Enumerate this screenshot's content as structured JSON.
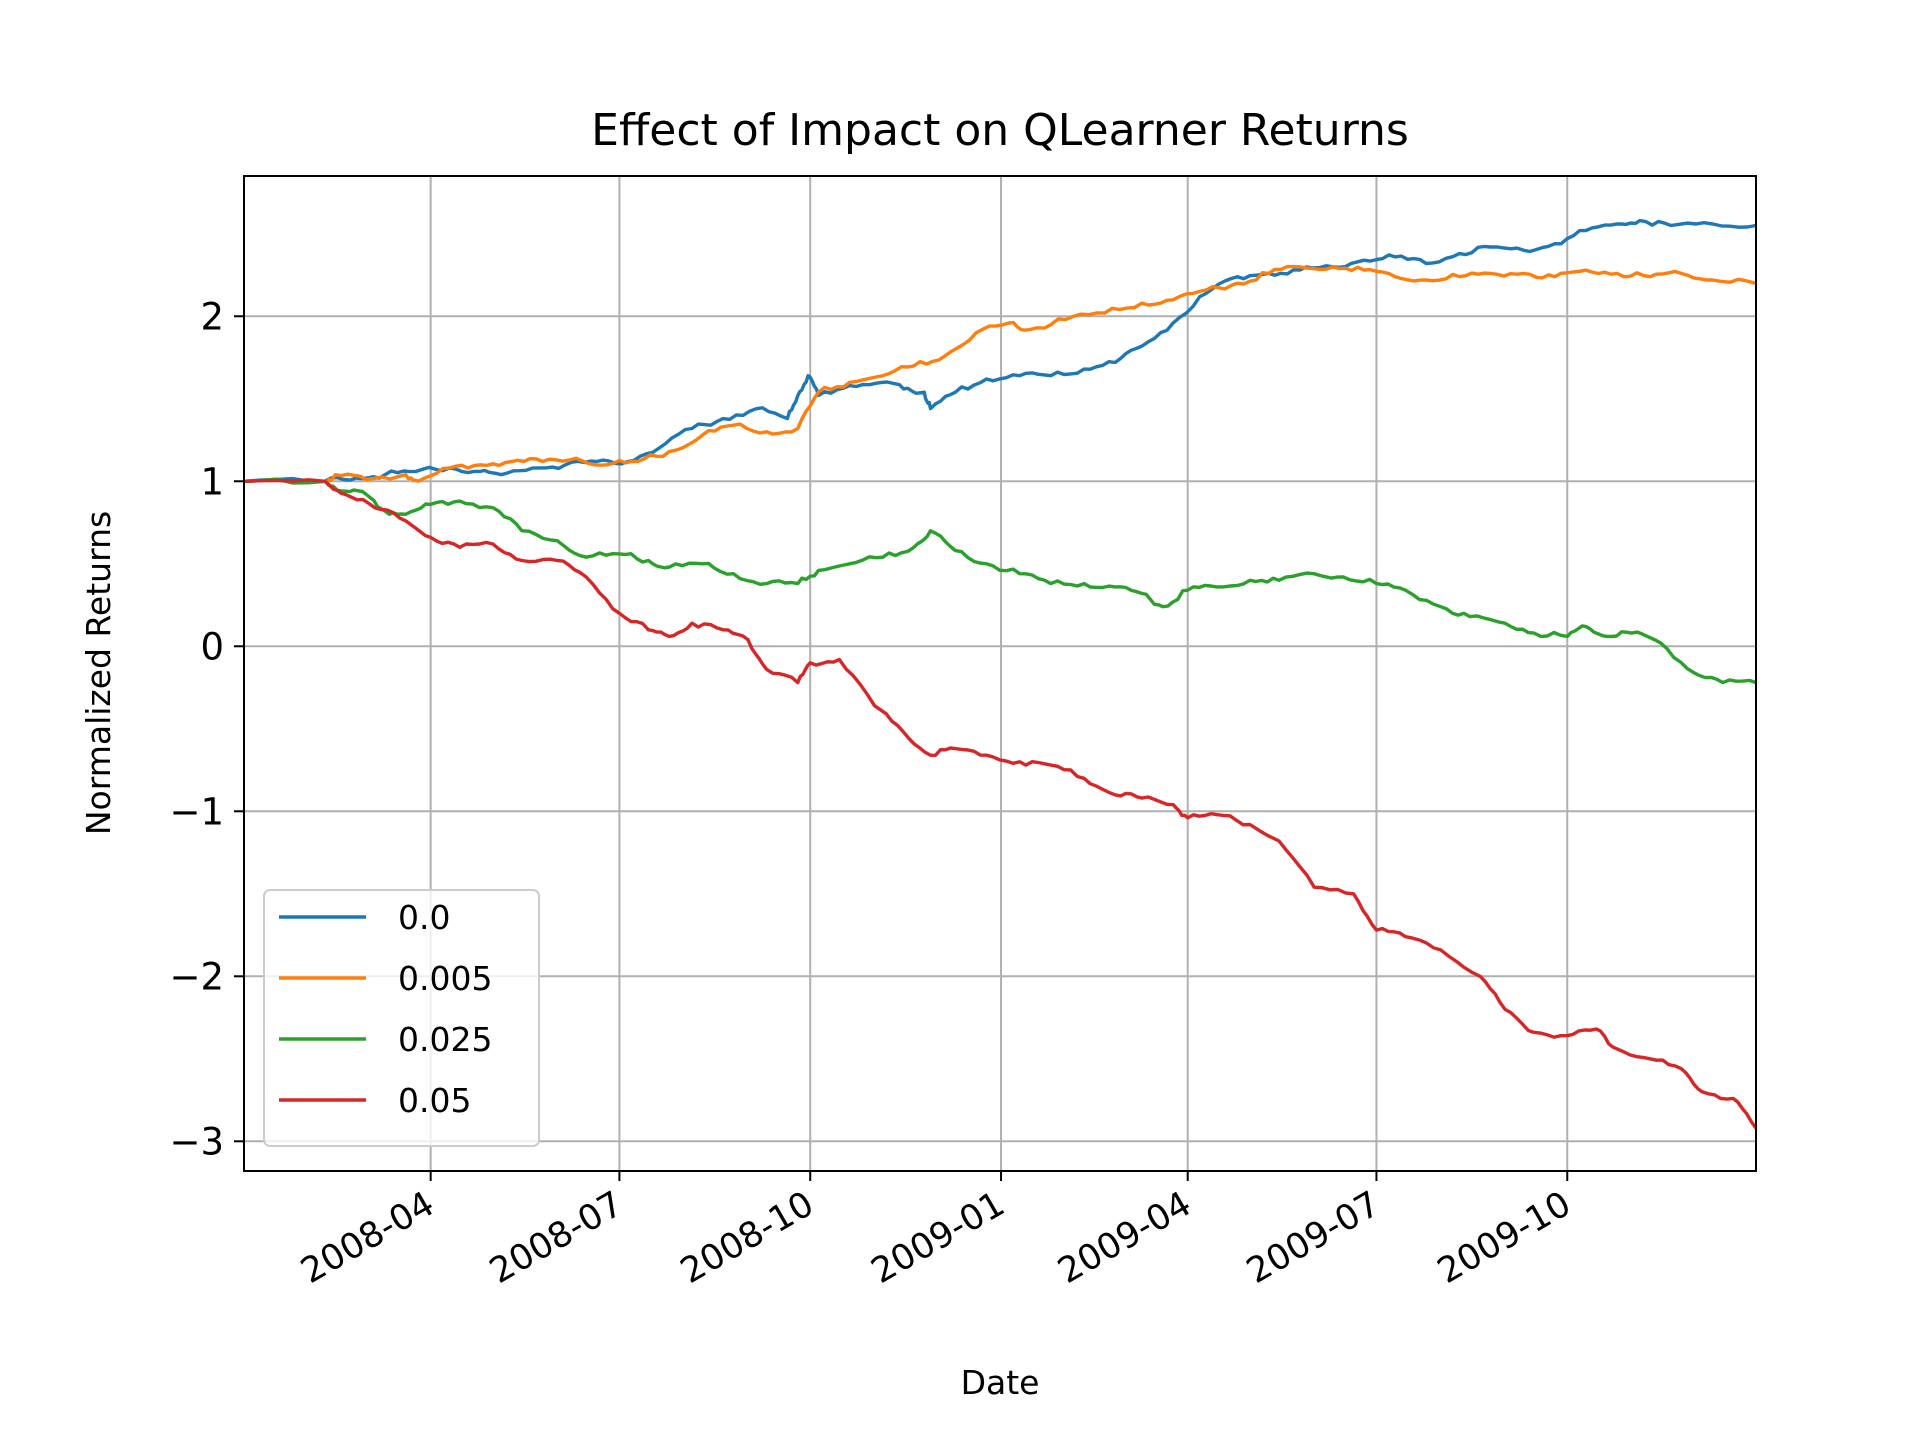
{
  "chart_data": {
    "type": "line",
    "title": "Effect of Impact on QLearner Returns",
    "xlabel": "Date",
    "ylabel": "Normalized Returns",
    "x_type": "date",
    "xlim": [
      "2008-01-02",
      "2009-12-31"
    ],
    "ylim": [
      -3.18,
      2.85
    ],
    "x_ticks": [
      "2008-04-01",
      "2008-07-01",
      "2008-10-01",
      "2009-01-01",
      "2009-04-01",
      "2009-07-01",
      "2009-10-01"
    ],
    "x_tick_labels": [
      "2008-04",
      "2008-07",
      "2008-10",
      "2009-01",
      "2009-04",
      "2009-07",
      "2009-10"
    ],
    "y_ticks": [
      -3,
      -2,
      -1,
      0,
      1,
      2
    ],
    "y_tick_labels": [
      "−3",
      "−2",
      "−1",
      "0",
      "1",
      "2"
    ],
    "grid": true,
    "legend_position": "lower-left",
    "series": [
      {
        "name": "0.0",
        "color": "#1f77b4",
        "points": [
          [
            "2008-01-02",
            1.0
          ],
          [
            "2008-02-10",
            1.0
          ],
          [
            "2008-02-25",
            1.02
          ],
          [
            "2008-03-10",
            1.04
          ],
          [
            "2008-03-25",
            1.06
          ],
          [
            "2008-04-10",
            1.08
          ],
          [
            "2008-04-25",
            1.06
          ],
          [
            "2008-05-05",
            1.04
          ],
          [
            "2008-05-20",
            1.08
          ],
          [
            "2008-06-05",
            1.1
          ],
          [
            "2008-06-20",
            1.12
          ],
          [
            "2008-07-05",
            1.12
          ],
          [
            "2008-07-20",
            1.2
          ],
          [
            "2008-08-05",
            1.32
          ],
          [
            "2008-08-20",
            1.38
          ],
          [
            "2008-09-05",
            1.44
          ],
          [
            "2008-09-20",
            1.38
          ],
          [
            "2008-09-25",
            1.52
          ],
          [
            "2008-09-30",
            1.64
          ],
          [
            "2008-10-05",
            1.52
          ],
          [
            "2008-10-20",
            1.58
          ],
          [
            "2008-11-05",
            1.6
          ],
          [
            "2008-11-15",
            1.56
          ],
          [
            "2008-11-25",
            1.54
          ],
          [
            "2008-11-28",
            1.44
          ],
          [
            "2008-12-10",
            1.54
          ],
          [
            "2008-12-25",
            1.62
          ],
          [
            "2009-01-10",
            1.64
          ],
          [
            "2009-01-25",
            1.64
          ],
          [
            "2009-02-10",
            1.68
          ],
          [
            "2009-02-25",
            1.72
          ],
          [
            "2009-03-10",
            1.82
          ],
          [
            "2009-03-25",
            1.96
          ],
          [
            "2009-04-10",
            2.14
          ],
          [
            "2009-04-25",
            2.24
          ],
          [
            "2009-05-10",
            2.26
          ],
          [
            "2009-05-25",
            2.28
          ],
          [
            "2009-06-10",
            2.3
          ],
          [
            "2009-06-25",
            2.34
          ],
          [
            "2009-07-10",
            2.36
          ],
          [
            "2009-07-25",
            2.32
          ],
          [
            "2009-08-10",
            2.38
          ],
          [
            "2009-08-25",
            2.42
          ],
          [
            "2009-09-10",
            2.4
          ],
          [
            "2009-09-25",
            2.44
          ],
          [
            "2009-10-10",
            2.52
          ],
          [
            "2009-10-25",
            2.56
          ],
          [
            "2009-11-05",
            2.58
          ],
          [
            "2009-11-20",
            2.55
          ],
          [
            "2009-12-10",
            2.56
          ],
          [
            "2009-12-31",
            2.55
          ]
        ]
      },
      {
        "name": "0.005",
        "color": "#ff7f0e",
        "points": [
          [
            "2008-01-02",
            1.0
          ],
          [
            "2008-02-10",
            1.0
          ],
          [
            "2008-02-15",
            1.04
          ],
          [
            "2008-03-01",
            1.01
          ],
          [
            "2008-03-20",
            1.04
          ],
          [
            "2008-03-26",
            1.0
          ],
          [
            "2008-04-10",
            1.08
          ],
          [
            "2008-04-25",
            1.1
          ],
          [
            "2008-05-10",
            1.12
          ],
          [
            "2008-05-25",
            1.12
          ],
          [
            "2008-06-10",
            1.14
          ],
          [
            "2008-06-25",
            1.1
          ],
          [
            "2008-07-10",
            1.12
          ],
          [
            "2008-07-25",
            1.18
          ],
          [
            "2008-08-10",
            1.28
          ],
          [
            "2008-08-25",
            1.34
          ],
          [
            "2008-09-10",
            1.3
          ],
          [
            "2008-09-25",
            1.32
          ],
          [
            "2008-10-05",
            1.54
          ],
          [
            "2008-10-20",
            1.6
          ],
          [
            "2008-11-05",
            1.64
          ],
          [
            "2008-11-20",
            1.7
          ],
          [
            "2008-12-05",
            1.76
          ],
          [
            "2008-12-20",
            1.9
          ],
          [
            "2009-01-05",
            1.96
          ],
          [
            "2009-01-15",
            1.92
          ],
          [
            "2009-02-01",
            1.98
          ],
          [
            "2009-02-20",
            2.02
          ],
          [
            "2009-03-10",
            2.08
          ],
          [
            "2009-03-25",
            2.1
          ],
          [
            "2009-04-10",
            2.16
          ],
          [
            "2009-04-25",
            2.2
          ],
          [
            "2009-05-10",
            2.26
          ],
          [
            "2009-05-25",
            2.3
          ],
          [
            "2009-06-10",
            2.3
          ],
          [
            "2009-06-25",
            2.28
          ],
          [
            "2009-07-10",
            2.24
          ],
          [
            "2009-07-25",
            2.22
          ],
          [
            "2009-08-10",
            2.24
          ],
          [
            "2009-08-25",
            2.26
          ],
          [
            "2009-09-10",
            2.26
          ],
          [
            "2009-09-25",
            2.24
          ],
          [
            "2009-10-10",
            2.28
          ],
          [
            "2009-10-25",
            2.26
          ],
          [
            "2009-11-10",
            2.24
          ],
          [
            "2009-11-25",
            2.26
          ],
          [
            "2009-12-10",
            2.22
          ],
          [
            "2009-12-31",
            2.2
          ]
        ]
      },
      {
        "name": "0.025",
        "color": "#2ca02c",
        "points": [
          [
            "2008-01-02",
            1.0
          ],
          [
            "2008-02-10",
            1.0
          ],
          [
            "2008-02-20",
            0.94
          ],
          [
            "2008-03-01",
            0.92
          ],
          [
            "2008-03-10",
            0.82
          ],
          [
            "2008-03-20",
            0.8
          ],
          [
            "2008-04-01",
            0.86
          ],
          [
            "2008-04-15",
            0.88
          ],
          [
            "2008-05-01",
            0.84
          ],
          [
            "2008-05-15",
            0.7
          ],
          [
            "2008-06-01",
            0.64
          ],
          [
            "2008-06-15",
            0.54
          ],
          [
            "2008-07-01",
            0.56
          ],
          [
            "2008-07-15",
            0.52
          ],
          [
            "2008-07-25",
            0.48
          ],
          [
            "2008-08-10",
            0.5
          ],
          [
            "2008-08-25",
            0.44
          ],
          [
            "2008-09-10",
            0.38
          ],
          [
            "2008-09-25",
            0.38
          ],
          [
            "2008-10-05",
            0.46
          ],
          [
            "2008-10-20",
            0.5
          ],
          [
            "2008-11-05",
            0.54
          ],
          [
            "2008-11-20",
            0.6
          ],
          [
            "2008-11-28",
            0.7
          ],
          [
            "2008-12-10",
            0.58
          ],
          [
            "2008-12-25",
            0.5
          ],
          [
            "2009-01-10",
            0.44
          ],
          [
            "2009-01-25",
            0.38
          ],
          [
            "2009-02-10",
            0.38
          ],
          [
            "2009-02-25",
            0.36
          ],
          [
            "2009-03-10",
            0.32
          ],
          [
            "2009-03-20",
            0.24
          ],
          [
            "2009-04-01",
            0.34
          ],
          [
            "2009-04-15",
            0.36
          ],
          [
            "2009-05-01",
            0.4
          ],
          [
            "2009-05-15",
            0.4
          ],
          [
            "2009-06-01",
            0.44
          ],
          [
            "2009-06-15",
            0.42
          ],
          [
            "2009-07-01",
            0.38
          ],
          [
            "2009-07-15",
            0.34
          ],
          [
            "2009-08-01",
            0.24
          ],
          [
            "2009-08-15",
            0.18
          ],
          [
            "2009-09-01",
            0.14
          ],
          [
            "2009-09-15",
            0.08
          ],
          [
            "2009-10-01",
            0.06
          ],
          [
            "2009-10-10",
            0.12
          ],
          [
            "2009-10-20",
            0.06
          ],
          [
            "2009-11-01",
            0.08
          ],
          [
            "2009-11-15",
            0.02
          ],
          [
            "2009-12-01",
            -0.16
          ],
          [
            "2009-12-15",
            -0.22
          ],
          [
            "2009-12-31",
            -0.22
          ]
        ]
      },
      {
        "name": "0.05",
        "color": "#d62728",
        "points": [
          [
            "2008-01-02",
            1.0
          ],
          [
            "2008-02-10",
            1.0
          ],
          [
            "2008-02-20",
            0.92
          ],
          [
            "2008-03-05",
            0.84
          ],
          [
            "2008-03-20",
            0.76
          ],
          [
            "2008-04-01",
            0.66
          ],
          [
            "2008-04-15",
            0.6
          ],
          [
            "2008-05-01",
            0.62
          ],
          [
            "2008-05-15",
            0.52
          ],
          [
            "2008-06-01",
            0.52
          ],
          [
            "2008-06-15",
            0.42
          ],
          [
            "2008-07-01",
            0.2
          ],
          [
            "2008-07-15",
            0.1
          ],
          [
            "2008-07-25",
            0.06
          ],
          [
            "2008-08-05",
            0.14
          ],
          [
            "2008-08-20",
            0.1
          ],
          [
            "2008-09-01",
            0.04
          ],
          [
            "2008-09-10",
            -0.14
          ],
          [
            "2008-09-25",
            -0.22
          ],
          [
            "2008-10-01",
            -0.1
          ],
          [
            "2008-10-15",
            -0.08
          ],
          [
            "2008-11-01",
            -0.36
          ],
          [
            "2008-11-15",
            -0.52
          ],
          [
            "2008-11-28",
            -0.66
          ],
          [
            "2008-12-10",
            -0.62
          ],
          [
            "2008-12-25",
            -0.66
          ],
          [
            "2009-01-10",
            -0.7
          ],
          [
            "2009-01-25",
            -0.72
          ],
          [
            "2009-02-10",
            -0.8
          ],
          [
            "2009-02-25",
            -0.9
          ],
          [
            "2009-03-10",
            -0.92
          ],
          [
            "2009-03-25",
            -0.96
          ],
          [
            "2009-04-01",
            -1.04
          ],
          [
            "2009-04-15",
            -1.02
          ],
          [
            "2009-05-01",
            -1.08
          ],
          [
            "2009-05-15",
            -1.18
          ],
          [
            "2009-06-01",
            -1.46
          ],
          [
            "2009-06-20",
            -1.5
          ],
          [
            "2009-07-01",
            -1.72
          ],
          [
            "2009-07-15",
            -1.76
          ],
          [
            "2009-08-01",
            -1.84
          ],
          [
            "2009-08-20",
            -2.0
          ],
          [
            "2009-09-01",
            -2.2
          ],
          [
            "2009-09-15",
            -2.34
          ],
          [
            "2009-10-01",
            -2.36
          ],
          [
            "2009-10-15",
            -2.32
          ],
          [
            "2009-10-25",
            -2.44
          ],
          [
            "2009-11-10",
            -2.5
          ],
          [
            "2009-11-25",
            -2.56
          ],
          [
            "2009-12-05",
            -2.7
          ],
          [
            "2009-12-20",
            -2.74
          ],
          [
            "2009-12-31",
            -2.92
          ]
        ]
      }
    ]
  }
}
